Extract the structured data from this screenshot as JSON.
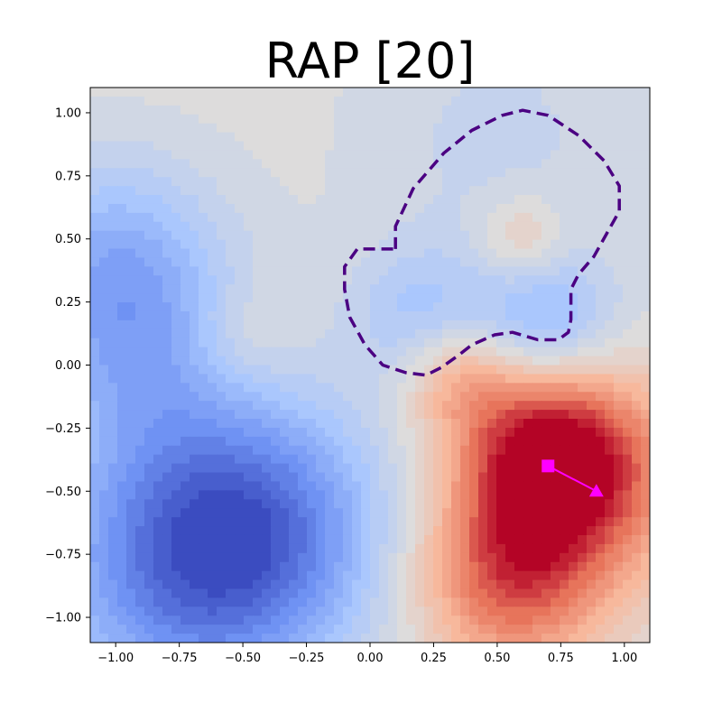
{
  "chart_data": {
    "type": "heatmap",
    "title": "RAP [20]",
    "xlabel": "",
    "ylabel": "",
    "xlim": [
      -1.1,
      1.1
    ],
    "ylim": [
      -1.1,
      1.1
    ],
    "xticks": [
      -1.0,
      -0.75,
      -0.5,
      -0.25,
      0.0,
      0.25,
      0.5,
      0.75,
      1.0
    ],
    "xtick_labels": [
      "−1.00",
      "−0.75",
      "−0.50",
      "−0.25",
      "0.00",
      "0.25",
      "0.50",
      "0.75",
      "1.00"
    ],
    "yticks": [
      1.0,
      0.75,
      0.5,
      0.25,
      0.0,
      -0.25,
      -0.5,
      -0.75,
      -1.0
    ],
    "ytick_labels": [
      "1.00",
      "0.75",
      "0.50",
      "0.25",
      "0.00",
      "−0.25",
      "−0.50",
      "−0.75",
      "−1.00"
    ],
    "grid": false,
    "colormap": "coolwarm",
    "colormap_stops": [
      "#3b4cc0",
      "#6f92f3",
      "#aac7fd",
      "#dddcdc",
      "#f7b89c",
      "#e7745b",
      "#b40426"
    ],
    "field_value_range": [
      -1,
      1
    ],
    "field_features": [
      {
        "x": -0.7,
        "y": -0.8,
        "amplitude": -0.75,
        "spread": 0.4
      },
      {
        "x": -0.4,
        "y": -0.6,
        "amplitude": -0.45,
        "spread": 0.35
      },
      {
        "x": -1.0,
        "y": 0.4,
        "amplitude": -0.45,
        "spread": 0.3
      },
      {
        "x": -0.9,
        "y": 0.0,
        "amplitude": -0.3,
        "spread": 0.3
      },
      {
        "x": 0.2,
        "y": 0.2,
        "amplitude": -0.3,
        "spread": 0.2
      },
      {
        "x": 0.7,
        "y": 0.15,
        "amplitude": -0.45,
        "spread": 0.2
      },
      {
        "x": 0.5,
        "y": 0.9,
        "amplitude": -0.15,
        "spread": 0.4
      },
      {
        "x": 0.7,
        "y": -0.35,
        "amplitude": 0.95,
        "spread": 0.25
      },
      {
        "x": 0.55,
        "y": -0.85,
        "amplitude": 0.7,
        "spread": 0.25
      },
      {
        "x": 0.9,
        "y": -0.5,
        "amplitude": 0.4,
        "spread": 0.3
      },
      {
        "x": 0.35,
        "y": -0.05,
        "amplitude": 0.35,
        "spread": 0.15
      },
      {
        "x": 0.6,
        "y": 0.5,
        "amplitude": 0.25,
        "spread": 0.12
      },
      {
        "x": -0.5,
        "y": 0.1,
        "amplitude": 0.15,
        "spread": 0.15
      }
    ],
    "boundary": {
      "style": "dashed",
      "color": "#4b0082",
      "points": [
        [
          0.1,
          0.46
        ],
        [
          0.1,
          0.55
        ],
        [
          0.17,
          0.7
        ],
        [
          0.29,
          0.84
        ],
        [
          0.4,
          0.93
        ],
        [
          0.52,
          0.99
        ],
        [
          0.6,
          1.01
        ],
        [
          0.7,
          0.99
        ],
        [
          0.82,
          0.91
        ],
        [
          0.92,
          0.81
        ],
        [
          0.98,
          0.71
        ],
        [
          0.98,
          0.61
        ],
        [
          0.93,
          0.52
        ],
        [
          0.88,
          0.43
        ],
        [
          0.82,
          0.36
        ],
        [
          0.79,
          0.3
        ],
        [
          0.79,
          0.18
        ],
        [
          0.78,
          0.13
        ],
        [
          0.74,
          0.1
        ],
        [
          0.66,
          0.1
        ],
        [
          0.56,
          0.13
        ],
        [
          0.49,
          0.12
        ],
        [
          0.4,
          0.08
        ],
        [
          0.35,
          0.04
        ],
        [
          0.28,
          -0.01
        ],
        [
          0.22,
          -0.04
        ],
        [
          0.14,
          -0.03
        ],
        [
          0.05,
          0.0
        ],
        [
          -0.02,
          0.08
        ],
        [
          -0.08,
          0.19
        ],
        [
          -0.1,
          0.3
        ],
        [
          -0.1,
          0.39
        ],
        [
          -0.05,
          0.46
        ],
        [
          0.1,
          0.46
        ]
      ]
    },
    "markers": [
      {
        "name": "start",
        "shape": "square",
        "color": "#ff00ff",
        "x": 0.7,
        "y": -0.4
      },
      {
        "name": "end",
        "shape": "triangle",
        "color": "#ff00ff",
        "x": 0.89,
        "y": -0.5
      }
    ]
  }
}
